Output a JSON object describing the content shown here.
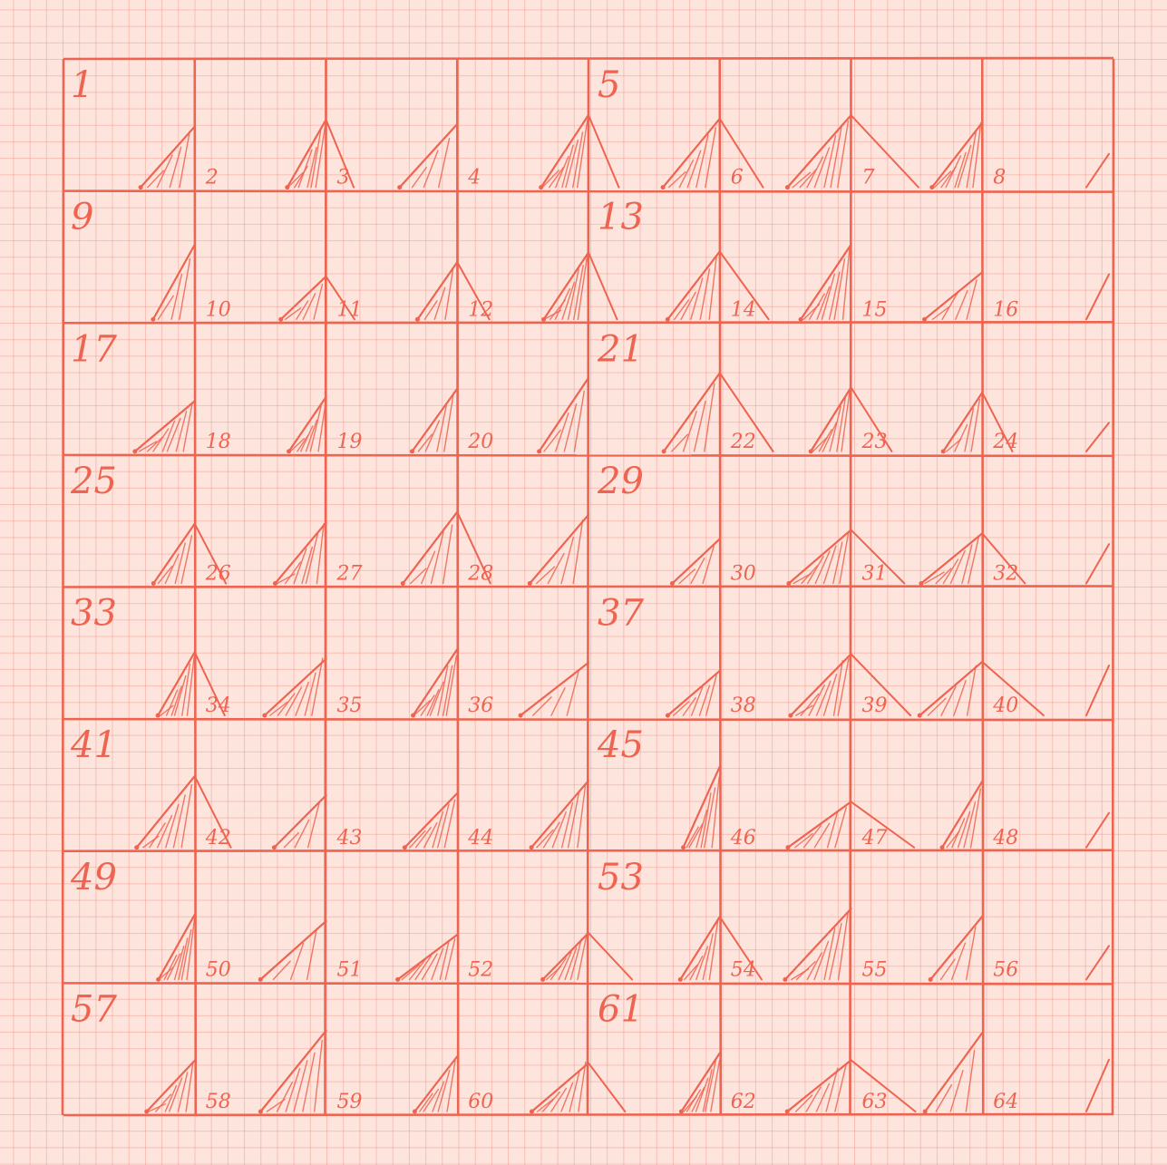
{
  "sheet": {
    "colors": {
      "ink": "#ee6450",
      "paper": "#fde4dd",
      "grid_fine": "#f07869"
    },
    "grid": {
      "rows": 8,
      "cols": 8
    },
    "row_labels": [
      "1",
      "9",
      "17",
      "25",
      "33",
      "41",
      "49",
      "57"
    ],
    "mid_labels": [
      "5",
      "13",
      "21",
      "29",
      "37",
      "45",
      "53",
      "61"
    ],
    "cell_numbers": [
      [
        "",
        "2",
        "3",
        "4",
        "",
        "6",
        "7",
        "8"
      ],
      [
        "",
        "10",
        "11",
        "12",
        "",
        "14",
        "15",
        "16"
      ],
      [
        "",
        "18",
        "19",
        "20",
        "",
        "22",
        "23",
        "24"
      ],
      [
        "",
        "26",
        "27",
        "28",
        "",
        "30",
        "31",
        "32"
      ],
      [
        "",
        "34",
        "35",
        "36",
        "",
        "38",
        "39",
        "40"
      ],
      [
        "",
        "42",
        "43",
        "44",
        "",
        "46",
        "47",
        "48"
      ],
      [
        "",
        "50",
        "51",
        "52",
        "",
        "54",
        "55",
        "56"
      ],
      [
        "",
        "58",
        "59",
        "60",
        "",
        "62",
        "63",
        "64"
      ]
    ]
  }
}
